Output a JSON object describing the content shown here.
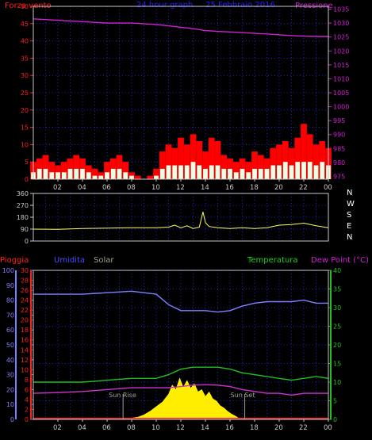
{
  "colors": {
    "background": "#000000",
    "frame": "#c8c8c8",
    "grid": "#2a2aff",
    "wind_label": "#ff2020",
    "pressure_label": "#d020d0",
    "title": "#2020ff",
    "wind_gust": "#ff0000",
    "wind_avg": "#e8ffe8",
    "pressure_line": "#d020d0",
    "direction_line": "#ffff60",
    "rain_label": "#ff2020",
    "humidity_label": "#4a4aff",
    "solar_label": "#a0a090",
    "temperature_label": "#20d020",
    "dew_point_label": "#d020d0",
    "humidity_line": "#8080ff",
    "temperature_line": "#20c020",
    "dew_point_line": "#d030d0",
    "solar_fill": "#ffee00",
    "rain_fill": "#ff2020",
    "sun_marker": "#a0a090"
  },
  "header": {
    "left_label": "Forza vento",
    "title": "24 hour graph ... 25 Febbraio 2016",
    "right_label": "Pressione"
  },
  "panel2": {
    "compass": [
      "N",
      "W",
      "S",
      "E",
      "N"
    ]
  },
  "panel3": {
    "rain_label": "Pioggia",
    "humidity_label": "Umidita",
    "solar_label": "Solar",
    "temperature_label": "Temperatura",
    "dew_point_label": "Dew Point (°C)",
    "sunrise_label": "Sun Rise",
    "sunset_label": "Sun Set"
  },
  "x_axis": {
    "ticks": [
      "02",
      "04",
      "06",
      "08",
      "10",
      "12",
      "14",
      "16",
      "18",
      "20",
      "22",
      "00"
    ],
    "range_hours": [
      0,
      24
    ]
  },
  "chart_data": [
    {
      "type": "line",
      "name": "wind-pressure",
      "title": "24 hour graph ... 25 Febbraio 2016",
      "ylabel_left": "Forza vento",
      "ylabel_right": "Pressione",
      "left_ticks": [
        "0",
        "5",
        "10",
        "15",
        "20",
        "25",
        "30",
        "35",
        "40",
        "45",
        "50"
      ],
      "ylim_left": [
        0,
        50
      ],
      "right_ticks": [
        "975",
        "980",
        "985",
        "990",
        "995",
        "1000",
        "1005",
        "1010",
        "1015",
        "1020",
        "1025",
        "1030",
        "1035"
      ],
      "ylim_right": [
        974,
        1036
      ],
      "grid": true,
      "series": [
        {
          "name": "Pressione",
          "axis": "right",
          "x": [
            0,
            2,
            4,
            6,
            8,
            10,
            11,
            12,
            13,
            14,
            15,
            16,
            17,
            18,
            19,
            20,
            21,
            22,
            23,
            24
          ],
          "values": [
            1031.5,
            1031,
            1030.5,
            1030,
            1030,
            1029.5,
            1029,
            1028.5,
            1028,
            1027.3,
            1027,
            1026.8,
            1026.6,
            1026.3,
            1026.1,
            1025.8,
            1025.5,
            1025.3,
            1025.2,
            1025.2
          ]
        },
        {
          "name": "wind-gust",
          "axis": "left",
          "x": [
            0,
            0.5,
            1,
            1.5,
            2,
            2.5,
            3,
            3.5,
            4,
            4.5,
            5,
            5.5,
            6,
            6.5,
            7,
            7.5,
            8,
            8.5,
            9,
            9.5,
            10,
            10.5,
            11,
            11.5,
            12,
            12.5,
            13,
            13.5,
            14,
            14.5,
            15,
            15.5,
            16,
            16.5,
            17,
            17.5,
            18,
            18.5,
            19,
            19.5,
            20,
            20.5,
            21,
            21.5,
            22,
            22.5,
            23,
            23.5,
            24
          ],
          "values": [
            5,
            6,
            7,
            5,
            4,
            5,
            6,
            7,
            6,
            4,
            3,
            2,
            5,
            6,
            7,
            5,
            2,
            1,
            0,
            1,
            3,
            8,
            10,
            9,
            12,
            10,
            13,
            11,
            8,
            12,
            11,
            7,
            6,
            5,
            6,
            5,
            8,
            7,
            6,
            9,
            10,
            11,
            9,
            12,
            16,
            13,
            10,
            11,
            9
          ]
        },
        {
          "name": "wind-average",
          "axis": "left",
          "x": [
            0,
            0.5,
            1,
            1.5,
            2,
            2.5,
            3,
            3.5,
            4,
            4.5,
            5,
            5.5,
            6,
            6.5,
            7,
            7.5,
            8,
            8.5,
            9,
            9.5,
            10,
            10.5,
            11,
            11.5,
            12,
            12.5,
            13,
            13.5,
            14,
            14.5,
            15,
            15.5,
            16,
            16.5,
            17,
            17.5,
            18,
            18.5,
            19,
            19.5,
            20,
            20.5,
            21,
            21.5,
            22,
            22.5,
            23,
            23.5,
            24
          ],
          "values": [
            2,
            3,
            3,
            2,
            2,
            2,
            3,
            3,
            3,
            2,
            1,
            1,
            2,
            3,
            3,
            2,
            1,
            0,
            0,
            0,
            1,
            3,
            4,
            4,
            4,
            4,
            5,
            4,
            3,
            4,
            4,
            3,
            3,
            2,
            3,
            2,
            3,
            3,
            3,
            4,
            4,
            5,
            4,
            5,
            5,
            5,
            4,
            5,
            4
          ]
        }
      ]
    },
    {
      "type": "line",
      "name": "wind-direction",
      "left_ticks": [
        "0",
        "90",
        "180",
        "270",
        "360"
      ],
      "ylim": [
        0,
        360
      ],
      "grid": true,
      "series": [
        {
          "name": "direction",
          "x": [
            0,
            2,
            4,
            6,
            8,
            10,
            11,
            11.5,
            12,
            12.5,
            13,
            13.5,
            13.8,
            14,
            14.3,
            15,
            16,
            17,
            18,
            19,
            20,
            21,
            22,
            23,
            24
          ],
          "values": [
            90,
            88,
            95,
            98,
            100,
            100,
            105,
            120,
            100,
            115,
            95,
            105,
            220,
            140,
            110,
            100,
            95,
            100,
            95,
            100,
            120,
            125,
            135,
            115,
            100
          ]
        }
      ]
    },
    {
      "type": "line",
      "name": "rain-humidity-temperature",
      "rain_ticks": [
        "0",
        "2",
        "4",
        "6",
        "8",
        "10",
        "12",
        "14",
        "16",
        "18",
        "20",
        "22",
        "24",
        "26",
        "28",
        "30"
      ],
      "rain_ylim": [
        0,
        30
      ],
      "humidity_ticks": [
        "0",
        "10",
        "20",
        "30",
        "40",
        "50",
        "60",
        "70",
        "80",
        "90",
        "100"
      ],
      "humidity_ylim": [
        0,
        100
      ],
      "temperature_ticks": [
        "0",
        "5",
        "10",
        "15",
        "20",
        "25",
        "30",
        "35",
        "40"
      ],
      "temperature_ylim": [
        0,
        40
      ],
      "grid": true,
      "series": [
        {
          "name": "Umidita",
          "axis": "humidity",
          "x": [
            0,
            2,
            4,
            6,
            8,
            9,
            10,
            11,
            12,
            13,
            14,
            15,
            16,
            17,
            18,
            19,
            20,
            21,
            22,
            23,
            24
          ],
          "values": [
            84,
            84,
            84,
            85,
            86,
            85,
            84,
            77,
            73,
            73,
            73,
            72,
            73,
            76,
            78,
            79,
            79,
            79,
            80,
            78,
            78
          ]
        },
        {
          "name": "Temperatura",
          "axis": "temperature",
          "x": [
            0,
            2,
            4,
            6,
            8,
            9,
            10,
            11,
            12,
            13,
            14,
            15,
            16,
            17,
            18,
            19,
            20,
            21,
            22,
            23,
            24
          ],
          "values": [
            10,
            10,
            10,
            10.5,
            11,
            11,
            11,
            12,
            13.5,
            14,
            14,
            14,
            13.5,
            12.5,
            12,
            11.5,
            11,
            10.5,
            11,
            11.5,
            11
          ]
        },
        {
          "name": "Dew Point",
          "axis": "temperature",
          "x": [
            0,
            2,
            4,
            6,
            8,
            9,
            10,
            11,
            12,
            13,
            14,
            15,
            16,
            17,
            18,
            19,
            20,
            21,
            22,
            23,
            24
          ],
          "values": [
            7,
            7.2,
            7.5,
            8,
            8.5,
            8.5,
            8.5,
            8.5,
            8.8,
            9.2,
            9.3,
            9.2,
            8.8,
            8,
            7.5,
            7,
            7,
            6.5,
            7,
            7,
            7
          ]
        },
        {
          "name": "Solar",
          "axis": "relative",
          "x": [
            7.2,
            7.8,
            8.5,
            9,
            9.5,
            10,
            10.5,
            11,
            11.3,
            11.6,
            11.9,
            12.2,
            12.5,
            12.8,
            13.1,
            13.4,
            13.7,
            14,
            14.3,
            14.6,
            14.9,
            15.2,
            15.5,
            15.8,
            16.1,
            16.4,
            16.7,
            17
          ],
          "values": [
            0,
            0.02,
            0.05,
            0.1,
            0.18,
            0.28,
            0.38,
            0.55,
            0.75,
            0.65,
            0.9,
            0.7,
            0.85,
            0.68,
            0.78,
            0.6,
            0.65,
            0.5,
            0.6,
            0.45,
            0.4,
            0.3,
            0.25,
            0.18,
            0.12,
            0.08,
            0.03,
            0
          ]
        }
      ],
      "markers": [
        {
          "name": "Sun Rise",
          "x": 7.3
        },
        {
          "name": "Sun Set",
          "x": 17.2
        }
      ]
    }
  ]
}
